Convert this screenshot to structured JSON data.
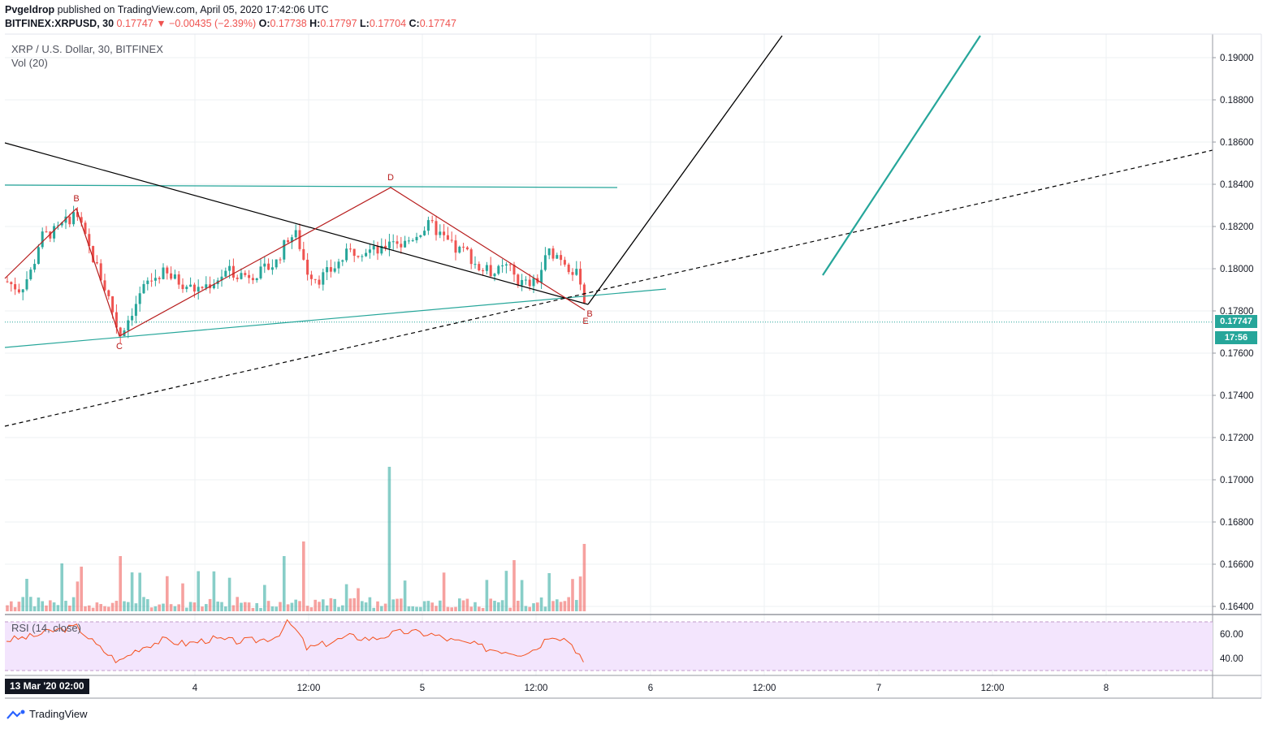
{
  "header": {
    "author": "Pvgeldrop",
    "published": "published on TradingView.com, April 05, 2020 17:42:06 UTC",
    "symbol": "BITFINEX:XRPUSD, 30",
    "last": "0.17747",
    "change": "−0.00435 (−2.39%)",
    "open_label": "O:",
    "open": "0.17738",
    "high_label": "H:",
    "high": "0.17797",
    "low_label": "L:",
    "low": "0.17704",
    "close_label": "C:",
    "close": "0.17747"
  },
  "legend": {
    "title": "XRP / U.S. Dollar, 30, BITFINEX",
    "volume": "Vol (20)",
    "rsi": "RSI (14, close)"
  },
  "price_tag": {
    "price": "0.17747",
    "countdown": "17:56"
  },
  "date_box": "13 Mar '20  02:00",
  "brand": "TradingView",
  "colors": {
    "up": "#26a69a",
    "down": "#ef5350",
    "pattern": "#b71c1c",
    "trend": "#000000",
    "channel": "#26a69a",
    "rsi_line": "#f4511e",
    "rsi_band": "#f3e5fd"
  },
  "chart_data": {
    "type": "candlestick",
    "title": "XRP / U.S. Dollar, 30, BITFINEX",
    "y_axis": {
      "ylim": [
        0.1635,
        0.1913
      ],
      "ticks": [
        "0.19000",
        "0.18800",
        "0.18600",
        "0.18400",
        "0.18200",
        "0.18000",
        "0.17800",
        "0.17600",
        "0.17400",
        "0.17200",
        "0.17000",
        "0.16800",
        "0.16600",
        "0.16400"
      ]
    },
    "x_axis": {
      "ticks": [
        "4",
        "12:00",
        "5",
        "12:00",
        "6",
        "12:00",
        "7",
        "12:00",
        "8"
      ]
    },
    "rsi_axis": {
      "ticks": [
        "60.00",
        "40.00"
      ],
      "band": [
        30,
        70
      ]
    },
    "pattern_labels": [
      "B",
      "C",
      "D",
      "E",
      "B"
    ],
    "last_price": 0.17747,
    "grid": true
  }
}
